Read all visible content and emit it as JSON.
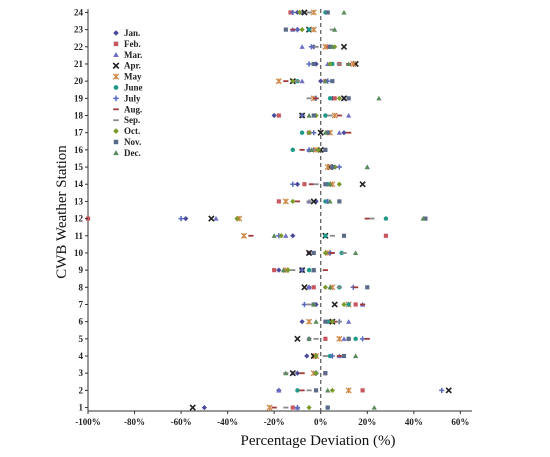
{
  "chart_data": {
    "type": "scatter",
    "title": "",
    "xlabel": "Percentage Deviation (%)",
    "ylabel": "CWB Weather Station",
    "xlim": [
      -100,
      65
    ],
    "ylim": [
      0.8,
      24.2
    ],
    "xticks": [
      -100,
      -80,
      -60,
      -40,
      -20,
      0,
      20,
      40,
      60
    ],
    "xtick_labels": [
      "-100%",
      "-80%",
      "-60%",
      "-40%",
      "-20%",
      "0%",
      "20%",
      "40%",
      "60%"
    ],
    "yticks": [
      1,
      2,
      3,
      4,
      5,
      6,
      7,
      8,
      9,
      10,
      11,
      12,
      13,
      14,
      15,
      16,
      17,
      18,
      19,
      20,
      21,
      22,
      23,
      24
    ],
    "reference_line_x": 0,
    "legend_position": "top-left",
    "series": [
      {
        "name": "Jan.",
        "marker": "diamond",
        "color": "#4a4a9c",
        "points": [
          [
            -50,
            1
          ],
          [
            -18,
            2
          ],
          [
            -10,
            3
          ],
          [
            -6,
            4
          ],
          [
            -5,
            5
          ],
          [
            -8,
            6
          ],
          [
            -2,
            7
          ],
          [
            -5,
            8
          ],
          [
            -18,
            9
          ],
          [
            4,
            10
          ],
          [
            -12,
            11
          ],
          [
            -58,
            12
          ],
          [
            -2,
            13
          ],
          [
            -10,
            14
          ],
          [
            6,
            15
          ],
          [
            -3,
            16
          ],
          [
            10,
            17
          ],
          [
            -20,
            18
          ],
          [
            5,
            19
          ],
          [
            0,
            20
          ],
          [
            -2,
            21
          ],
          [
            -3,
            22
          ],
          [
            -10,
            23
          ],
          [
            -10,
            24
          ]
        ]
      },
      {
        "name": "Feb.",
        "marker": "square",
        "color": "#c8565f",
        "points": [
          [
            -12,
            1
          ],
          [
            18,
            2
          ],
          [
            2,
            3
          ],
          [
            -3,
            4
          ],
          [
            2,
            5
          ],
          [
            4,
            6
          ],
          [
            15,
            7
          ],
          [
            -3,
            8
          ],
          [
            -20,
            9
          ],
          [
            -5,
            10
          ],
          [
            28,
            11
          ],
          [
            -100,
            12
          ],
          [
            -18,
            13
          ],
          [
            -7,
            14
          ],
          [
            4,
            15
          ],
          [
            2,
            16
          ],
          [
            -5,
            17
          ],
          [
            -18,
            18
          ],
          [
            6,
            19
          ],
          [
            2,
            20
          ],
          [
            8,
            21
          ],
          [
            3,
            22
          ],
          [
            -5,
            23
          ],
          [
            -13,
            24
          ]
        ]
      },
      {
        "name": "Mar.",
        "marker": "triangle",
        "color": "#6e6ec8",
        "points": [
          [
            -10,
            1
          ],
          [
            -18,
            2
          ],
          [
            -12,
            3
          ],
          [
            8,
            4
          ],
          [
            10,
            5
          ],
          [
            12,
            6
          ],
          [
            18,
            7
          ],
          [
            -5,
            8
          ],
          [
            -3,
            9
          ],
          [
            -5,
            10
          ],
          [
            -15,
            11
          ],
          [
            -45,
            12
          ],
          [
            -5,
            13
          ],
          [
            3,
            14
          ],
          [
            20,
            15
          ],
          [
            -5,
            16
          ],
          [
            8,
            17
          ],
          [
            12,
            18
          ],
          [
            10,
            19
          ],
          [
            -8,
            20
          ],
          [
            3,
            21
          ],
          [
            -8,
            22
          ],
          [
            -12,
            23
          ],
          [
            -8,
            24
          ]
        ]
      },
      {
        "name": "Apr.",
        "marker": "x",
        "color": "#222222",
        "points": [
          [
            -55,
            1
          ],
          [
            55,
            2
          ],
          [
            -12,
            3
          ],
          [
            -3,
            4
          ],
          [
            -10,
            5
          ],
          [
            5,
            6
          ],
          [
            6,
            7
          ],
          [
            -7,
            8
          ],
          [
            -8,
            9
          ],
          [
            -5,
            10
          ],
          [
            2,
            11
          ],
          [
            -47,
            12
          ],
          [
            -3,
            13
          ],
          [
            18,
            14
          ],
          [
            4,
            15
          ],
          [
            0,
            16
          ],
          [
            0,
            17
          ],
          [
            -8,
            18
          ],
          [
            10,
            19
          ],
          [
            -12,
            20
          ],
          [
            15,
            21
          ],
          [
            10,
            22
          ],
          [
            -5,
            23
          ],
          [
            -7,
            24
          ]
        ]
      },
      {
        "name": "May",
        "marker": "asterisk",
        "color": "#d08a4a",
        "points": [
          [
            -22,
            1
          ],
          [
            12,
            2
          ],
          [
            -3,
            3
          ],
          [
            -2,
            4
          ],
          [
            8,
            5
          ],
          [
            -5,
            6
          ],
          [
            12,
            7
          ],
          [
            5,
            8
          ],
          [
            -15,
            9
          ],
          [
            3,
            10
          ],
          [
            -33,
            11
          ],
          [
            -35,
            12
          ],
          [
            -15,
            13
          ],
          [
            5,
            14
          ],
          [
            3,
            15
          ],
          [
            -2,
            16
          ],
          [
            4,
            17
          ],
          [
            6,
            18
          ],
          [
            -3,
            19
          ],
          [
            -18,
            20
          ],
          [
            14,
            21
          ],
          [
            2,
            22
          ],
          [
            -3,
            23
          ],
          [
            -3,
            24
          ]
        ]
      },
      {
        "name": "June",
        "marker": "circle",
        "color": "#1f9a8a",
        "points": [
          [
            3,
            1
          ],
          [
            -10,
            2
          ],
          [
            -2,
            3
          ],
          [
            4,
            4
          ],
          [
            15,
            5
          ],
          [
            3,
            6
          ],
          [
            12,
            7
          ],
          [
            8,
            8
          ],
          [
            -5,
            9
          ],
          [
            9,
            10
          ],
          [
            2,
            11
          ],
          [
            28,
            12
          ],
          [
            2,
            13
          ],
          [
            3,
            14
          ],
          [
            6,
            15
          ],
          [
            -12,
            16
          ],
          [
            -8,
            17
          ],
          [
            2,
            18
          ],
          [
            4,
            19
          ],
          [
            -10,
            20
          ],
          [
            5,
            21
          ],
          [
            4,
            22
          ],
          [
            -5,
            23
          ],
          [
            2,
            24
          ]
        ]
      },
      {
        "name": "July",
        "marker": "plus",
        "color": "#5a6abf",
        "points": [
          [
            -10,
            1
          ],
          [
            52,
            2
          ],
          [
            -2,
            3
          ],
          [
            5,
            4
          ],
          [
            18,
            5
          ],
          [
            8,
            6
          ],
          [
            -7,
            7
          ],
          [
            14,
            8
          ],
          [
            -8,
            9
          ],
          [
            4,
            10
          ],
          [
            -18,
            11
          ],
          [
            -60,
            12
          ],
          [
            3,
            13
          ],
          [
            -12,
            14
          ],
          [
            8,
            15
          ],
          [
            -5,
            16
          ],
          [
            -3,
            17
          ],
          [
            -8,
            18
          ],
          [
            -2,
            19
          ],
          [
            3,
            20
          ],
          [
            -5,
            21
          ],
          [
            -4,
            22
          ],
          [
            -10,
            23
          ],
          [
            -12,
            24
          ]
        ]
      },
      {
        "name": "Aug.",
        "marker": "dash",
        "color": "#a03a3a",
        "points": [
          [
            -20,
            1
          ],
          [
            -8,
            2
          ],
          [
            -8,
            3
          ],
          [
            8,
            4
          ],
          [
            20,
            5
          ],
          [
            6,
            6
          ],
          [
            18,
            7
          ],
          [
            15,
            8
          ],
          [
            2,
            9
          ],
          [
            5,
            10
          ],
          [
            -30,
            11
          ],
          [
            20,
            12
          ],
          [
            -10,
            13
          ],
          [
            -4,
            14
          ],
          [
            6,
            15
          ],
          [
            -8,
            16
          ],
          [
            12,
            17
          ],
          [
            8,
            18
          ],
          [
            -2,
            19
          ],
          [
            -15,
            20
          ],
          [
            12,
            21
          ],
          [
            5,
            22
          ],
          [
            -12,
            23
          ],
          [
            -5,
            24
          ]
        ]
      },
      {
        "name": "Sep.",
        "marker": "dash",
        "color": "#8a8a8a",
        "points": [
          [
            -15,
            1
          ],
          [
            -5,
            2
          ],
          [
            -15,
            3
          ],
          [
            2,
            4
          ],
          [
            -2,
            5
          ],
          [
            8,
            6
          ],
          [
            -5,
            7
          ],
          [
            8,
            8
          ],
          [
            -12,
            9
          ],
          [
            10,
            10
          ],
          [
            5,
            11
          ],
          [
            22,
            12
          ],
          [
            -5,
            13
          ],
          [
            -2,
            14
          ],
          [
            5,
            15
          ],
          [
            -3,
            16
          ],
          [
            -5,
            17
          ],
          [
            4,
            18
          ],
          [
            -5,
            19
          ],
          [
            -10,
            20
          ],
          [
            8,
            21
          ],
          [
            -2,
            22
          ],
          [
            5,
            23
          ],
          [
            -5,
            24
          ]
        ]
      },
      {
        "name": "Oct.",
        "marker": "diamond",
        "color": "#7a9a2a",
        "points": [
          [
            -5,
            1
          ],
          [
            5,
            2
          ],
          [
            -2,
            3
          ],
          [
            -2,
            4
          ],
          [
            12,
            5
          ],
          [
            5,
            6
          ],
          [
            10,
            7
          ],
          [
            2,
            8
          ],
          [
            -14,
            9
          ],
          [
            2,
            10
          ],
          [
            -17,
            11
          ],
          [
            -36,
            12
          ],
          [
            -12,
            13
          ],
          [
            8,
            14
          ],
          [
            6,
            15
          ],
          [
            -1,
            16
          ],
          [
            -5,
            17
          ],
          [
            -2,
            18
          ],
          [
            8,
            19
          ],
          [
            -12,
            20
          ],
          [
            4,
            21
          ],
          [
            6,
            22
          ],
          [
            -8,
            23
          ],
          [
            -9,
            24
          ]
        ]
      },
      {
        "name": "Nov.",
        "marker": "square",
        "color": "#5a6a8a",
        "points": [
          [
            3,
            1
          ],
          [
            -2,
            2
          ],
          [
            2,
            3
          ],
          [
            10,
            4
          ],
          [
            12,
            5
          ],
          [
            2,
            6
          ],
          [
            -3,
            7
          ],
          [
            20,
            8
          ],
          [
            -3,
            9
          ],
          [
            -3,
            10
          ],
          [
            10,
            11
          ],
          [
            45,
            12
          ],
          [
            8,
            13
          ],
          [
            2,
            14
          ],
          [
            5,
            15
          ],
          [
            2,
            16
          ],
          [
            3,
            17
          ],
          [
            -3,
            18
          ],
          [
            12,
            19
          ],
          [
            5,
            20
          ],
          [
            -3,
            21
          ],
          [
            4,
            22
          ],
          [
            -15,
            23
          ],
          [
            3,
            24
          ]
        ]
      },
      {
        "name": "Dec.",
        "marker": "triangle",
        "color": "#5a8a5a",
        "points": [
          [
            23,
            1
          ],
          [
            3,
            2
          ],
          [
            -15,
            3
          ],
          [
            15,
            4
          ],
          [
            -5,
            5
          ],
          [
            -2,
            6
          ],
          [
            -3,
            7
          ],
          [
            4,
            8
          ],
          [
            -16,
            9
          ],
          [
            15,
            10
          ],
          [
            -20,
            11
          ],
          [
            44,
            12
          ],
          [
            4,
            13
          ],
          [
            4,
            14
          ],
          [
            20,
            15
          ],
          [
            -4,
            16
          ],
          [
            2,
            17
          ],
          [
            -5,
            18
          ],
          [
            25,
            19
          ],
          [
            2,
            20
          ],
          [
            12,
            21
          ],
          [
            5,
            22
          ],
          [
            6,
            23
          ],
          [
            10,
            24
          ]
        ]
      }
    ]
  }
}
